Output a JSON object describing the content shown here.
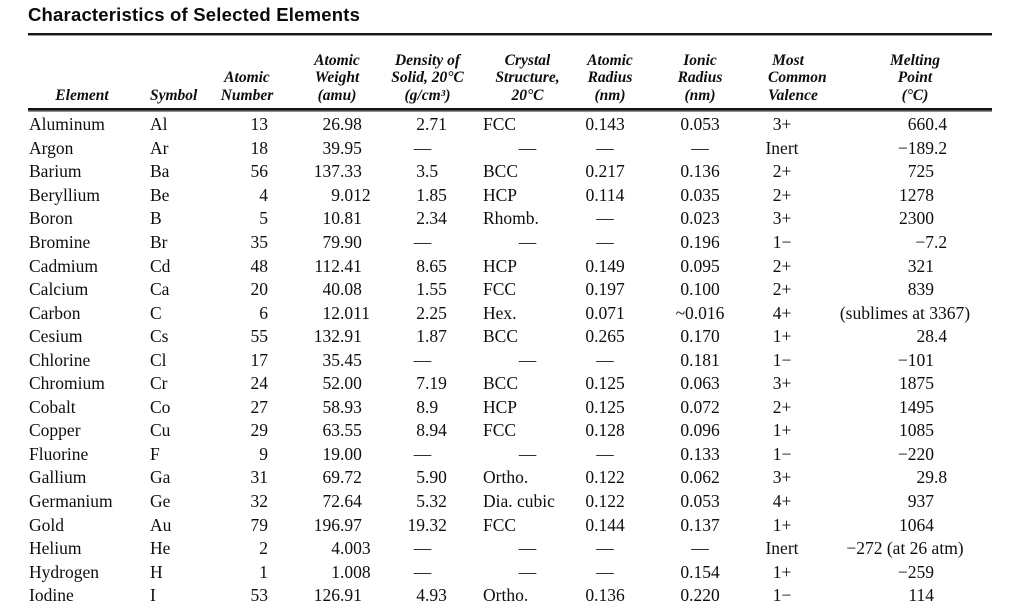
{
  "title": "Characteristics of Selected Elements",
  "table": {
    "headers": [
      {
        "id": "element",
        "lines": [
          "Element"
        ]
      },
      {
        "id": "symbol",
        "lines": [
          "Symbol"
        ]
      },
      {
        "id": "atomic-number",
        "lines": [
          "Atomic",
          "Number"
        ]
      },
      {
        "id": "atomic-weight",
        "lines": [
          "Atomic",
          "Weight",
          "(amu)"
        ]
      },
      {
        "id": "density",
        "lines": [
          "Density of",
          "Solid, 20°C",
          "(g/cm³)"
        ]
      },
      {
        "id": "crystal-structure",
        "lines": [
          "Crystal",
          "Structure,",
          "20°C"
        ]
      },
      {
        "id": "atomic-radius",
        "lines": [
          "Atomic",
          "Radius",
          "(nm)"
        ]
      },
      {
        "id": "ionic-radius",
        "lines": [
          "Ionic",
          "Radius",
          "(nm)"
        ]
      },
      {
        "id": "valence",
        "lines": [
          "Most",
          "Common",
          "Valence"
        ]
      },
      {
        "id": "melting-point",
        "lines": [
          "Melting",
          "Point",
          "(°C)"
        ]
      }
    ],
    "rows": [
      [
        "Aluminum",
        "Al",
        "13",
        "26.98",
        "2.71",
        "FCC",
        "0.143",
        "0.053",
        "3+",
        "660.4"
      ],
      [
        "Argon",
        "Ar",
        "18",
        "39.95",
        "—",
        "—",
        "—",
        "—",
        "Inert",
        "−189.2"
      ],
      [
        "Barium",
        "Ba",
        "56",
        "137.33",
        "3.5",
        "BCC",
        "0.217",
        "0.136",
        "2+",
        "725"
      ],
      [
        "Beryllium",
        "Be",
        "4",
        "9.012",
        "1.85",
        "HCP",
        "0.114",
        "0.035",
        "2+",
        "1278"
      ],
      [
        "Boron",
        "B",
        "5",
        "10.81",
        "2.34",
        "Rhomb.",
        "—",
        "0.023",
        "3+",
        "2300"
      ],
      [
        "Bromine",
        "Br",
        "35",
        "79.90",
        "—",
        "—",
        "—",
        "0.196",
        "1−",
        "−7.2"
      ],
      [
        "Cadmium",
        "Cd",
        "48",
        "112.41",
        "8.65",
        "HCP",
        "0.149",
        "0.095",
        "2+",
        "321"
      ],
      [
        "Calcium",
        "Ca",
        "20",
        "40.08",
        "1.55",
        "FCC",
        "0.197",
        "0.100",
        "2+",
        "839"
      ],
      [
        "Carbon",
        "C",
        "6",
        "12.011",
        "2.25",
        "Hex.",
        "0.071",
        "~0.016",
        "4+",
        "(sublimes at 3367)"
      ],
      [
        "Cesium",
        "Cs",
        "55",
        "132.91",
        "1.87",
        "BCC",
        "0.265",
        "0.170",
        "1+",
        "28.4"
      ],
      [
        "Chlorine",
        "Cl",
        "17",
        "35.45",
        "—",
        "—",
        "—",
        "0.181",
        "1−",
        "−101"
      ],
      [
        "Chromium",
        "Cr",
        "24",
        "52.00",
        "7.19",
        "BCC",
        "0.125",
        "0.063",
        "3+",
        "1875"
      ],
      [
        "Cobalt",
        "Co",
        "27",
        "58.93",
        "8.9",
        "HCP",
        "0.125",
        "0.072",
        "2+",
        "1495"
      ],
      [
        "Copper",
        "Cu",
        "29",
        "63.55",
        "8.94",
        "FCC",
        "0.128",
        "0.096",
        "1+",
        "1085"
      ],
      [
        "Fluorine",
        "F",
        "9",
        "19.00",
        "—",
        "—",
        "—",
        "0.133",
        "1−",
        "−220"
      ],
      [
        "Gallium",
        "Ga",
        "31",
        "69.72",
        "5.90",
        "Ortho.",
        "0.122",
        "0.062",
        "3+",
        "29.8"
      ],
      [
        "Germanium",
        "Ge",
        "32",
        "72.64",
        "5.32",
        "Dia. cubic",
        "0.122",
        "0.053",
        "4+",
        "937"
      ],
      [
        "Gold",
        "Au",
        "79",
        "196.97",
        "19.32",
        "FCC",
        "0.144",
        "0.137",
        "1+",
        "1064"
      ],
      [
        "Helium",
        "He",
        "2",
        "4.003",
        "—",
        "—",
        "—",
        "—",
        "Inert",
        "−272 (at 26 atm)"
      ],
      [
        "Hydrogen",
        "H",
        "1",
        "1.008",
        "—",
        "—",
        "—",
        "0.154",
        "1+",
        "−259"
      ],
      [
        "Iodine",
        "I",
        "53",
        "126.91",
        "4.93",
        "Ortho.",
        "0.136",
        "0.220",
        "1−",
        "114"
      ]
    ]
  }
}
